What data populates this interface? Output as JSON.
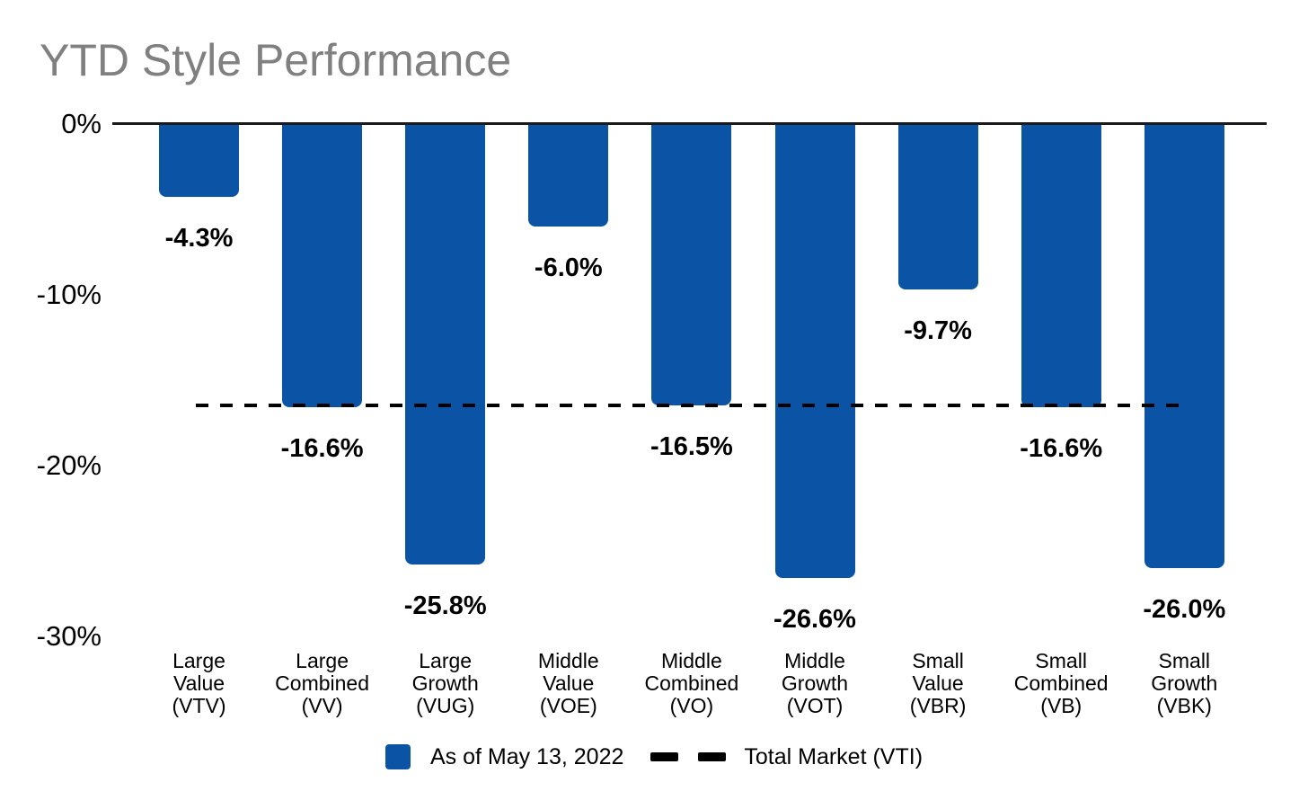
{
  "title": "YTD Style Performance",
  "colors": {
    "bar": "#0B54A5",
    "title_text": "#808080",
    "axis_line": "#1A1A1A",
    "reference_line": "#000000",
    "text": "#000000",
    "background": "#FFFFFF"
  },
  "chart_data": {
    "type": "bar",
    "title": "YTD Style Performance",
    "series_name": "As of May 13, 2022",
    "y_axis": {
      "range": [
        -30,
        0
      ],
      "grid": false,
      "ticks": [
        {
          "value": 0,
          "label": "0%"
        },
        {
          "value": -10,
          "label": "-10%"
        },
        {
          "value": -20,
          "label": "-20%"
        },
        {
          "value": -30,
          "label": "-30%"
        }
      ]
    },
    "points": [
      {
        "ticker": "VTV",
        "label_lines": [
          "Large",
          "Value",
          "(VTV)"
        ],
        "value": -4.3,
        "value_label": "-4.3%"
      },
      {
        "ticker": "VV",
        "label_lines": [
          "Large",
          "Combined",
          "(VV)"
        ],
        "value": -16.6,
        "value_label": "-16.6%"
      },
      {
        "ticker": "VUG",
        "label_lines": [
          "Large",
          "Growth",
          "(VUG)"
        ],
        "value": -25.8,
        "value_label": "-25.8%"
      },
      {
        "ticker": "VOE",
        "label_lines": [
          "Middle",
          "Value",
          "(VOE)"
        ],
        "value": -6.0,
        "value_label": "-6.0%"
      },
      {
        "ticker": "VO",
        "label_lines": [
          "Middle",
          "Combined",
          "(VO)"
        ],
        "value": -16.5,
        "value_label": "-16.5%"
      },
      {
        "ticker": "VOT",
        "label_lines": [
          "Middle",
          "Growth",
          "(VOT)"
        ],
        "value": -26.6,
        "value_label": "-26.6%"
      },
      {
        "ticker": "VBR",
        "label_lines": [
          "Small",
          "Value",
          "(VBR)"
        ],
        "value": -9.7,
        "value_label": "-9.7%"
      },
      {
        "ticker": "VB",
        "label_lines": [
          "Small",
          "Combined",
          "(VB)"
        ],
        "value": -16.6,
        "value_label": "-16.6%"
      },
      {
        "ticker": "VBK",
        "label_lines": [
          "Small",
          "Growth",
          "(VBK)"
        ],
        "value": -26.0,
        "value_label": "-26.0%"
      }
    ],
    "reference_line": {
      "value": -16.5,
      "style": "dashed",
      "label": "Total Market (VTI)"
    },
    "legend": {
      "position": "bottom-center",
      "items": [
        {
          "swatch": "square",
          "label": "As of May 13, 2022"
        },
        {
          "swatch": "dashed-line",
          "label": "Total Market (VTI)"
        }
      ]
    }
  }
}
